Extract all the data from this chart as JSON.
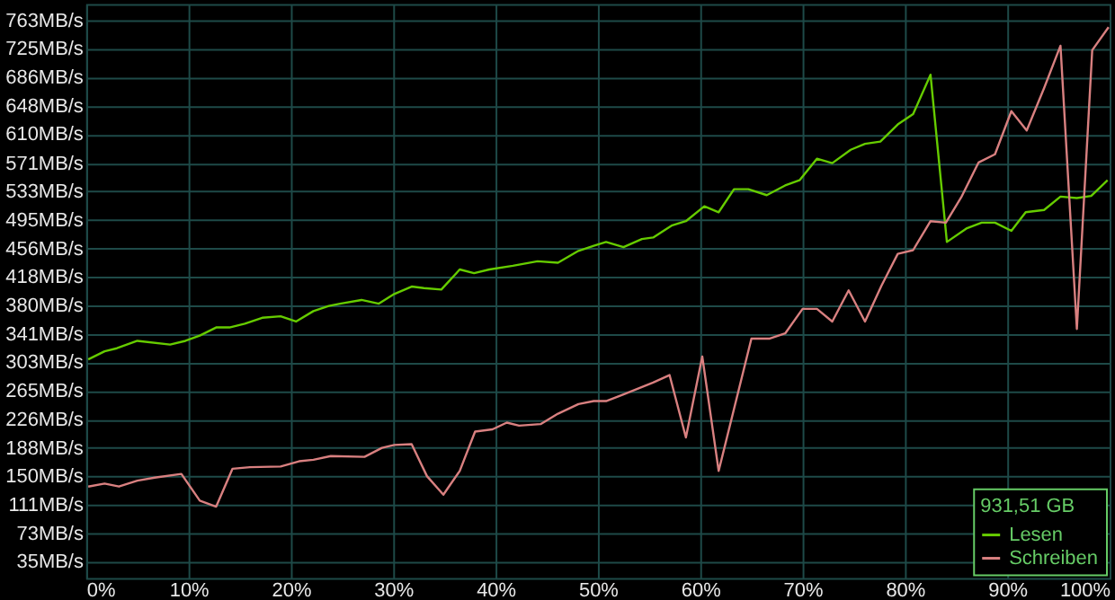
{
  "chart_data": {
    "type": "line",
    "legend_title": "931,51 GB",
    "legend": "bottom right",
    "grid": true,
    "line_style": "solid",
    "marker": "none",
    "xlim": [
      0,
      100
    ],
    "xticks": [
      {
        "value": 0,
        "label": "0%"
      },
      {
        "value": 10,
        "label": "10%"
      },
      {
        "value": 20,
        "label": "20%"
      },
      {
        "value": 30,
        "label": "30%"
      },
      {
        "value": 40,
        "label": "40%"
      },
      {
        "value": 50,
        "label": "50%"
      },
      {
        "value": 60,
        "label": "60%"
      },
      {
        "value": 70,
        "label": "70%"
      },
      {
        "value": 80,
        "label": "80%"
      },
      {
        "value": 90,
        "label": "90%"
      },
      {
        "value": 100,
        "label": "100%"
      }
    ],
    "ylim": [
      13,
      785
    ],
    "yticks": [
      {
        "value": 35,
        "label": "35MB/s"
      },
      {
        "value": 73,
        "label": "73MB/s"
      },
      {
        "value": 111,
        "label": "111MB/s"
      },
      {
        "value": 150,
        "label": "150MB/s"
      },
      {
        "value": 188,
        "label": "188MB/s"
      },
      {
        "value": 226,
        "label": "226MB/s"
      },
      {
        "value": 265,
        "label": "265MB/s"
      },
      {
        "value": 303,
        "label": "303MB/s"
      },
      {
        "value": 341,
        "label": "341MB/s"
      },
      {
        "value": 380,
        "label": "380MB/s"
      },
      {
        "value": 418,
        "label": "418MB/s"
      },
      {
        "value": 456,
        "label": "456MB/s"
      },
      {
        "value": 495,
        "label": "495MB/s"
      },
      {
        "value": 533,
        "label": "533MB/s"
      },
      {
        "value": 571,
        "label": "571MB/s"
      },
      {
        "value": 610,
        "label": "610MB/s"
      },
      {
        "value": 648,
        "label": "648MB/s"
      },
      {
        "value": 686,
        "label": "686MB/s"
      },
      {
        "value": 725,
        "label": "725MB/s"
      },
      {
        "value": 763,
        "label": "763MB/s"
      }
    ],
    "series": [
      {
        "name": "Lesen",
        "color": "#66cc00",
        "x": [
          0.2,
          1.8,
          3,
          5,
          8.2,
          9.7,
          11.1,
          12.7,
          14,
          15.5,
          17.2,
          19,
          20.5,
          22.2,
          23.7,
          24.8,
          26.9,
          28.6,
          30.1,
          31.8,
          33,
          34.7,
          36.5,
          37.9,
          39.4,
          41.7,
          44.1,
          46.1,
          48.1,
          49.6,
          50.8,
          52.5,
          54.3,
          55.4,
          57.2,
          58.6,
          60.4,
          61.8,
          63.3,
          64.7,
          66.5,
          68.3,
          69.7,
          71.4,
          72.9,
          74.7,
          76.1,
          77.6,
          79.3,
          80.8,
          82.5,
          84.1,
          86,
          87.5,
          88.8,
          90.4,
          91.8,
          93.6,
          95.2,
          96.8,
          98.2,
          99.8
        ],
        "values": [
          307,
          318,
          322,
          332,
          327,
          332,
          339,
          350,
          350,
          355,
          363,
          365,
          358,
          372,
          379,
          382,
          387,
          382,
          395,
          405,
          403,
          401,
          428,
          423,
          428,
          433,
          439,
          437,
          453,
          460,
          465,
          458,
          469,
          471,
          487,
          493,
          513,
          505,
          536,
          536,
          528,
          541,
          548,
          577,
          571,
          589,
          597,
          600,
          623,
          637,
          690,
          465,
          483,
          491,
          491,
          480,
          505,
          508,
          526,
          524,
          527,
          548
        ]
      },
      {
        "name": "Schreiben",
        "color": "#d98080",
        "x": [
          0.2,
          1.8,
          3.2,
          5,
          6.7,
          9.3,
          11.1,
          12.7,
          14.3,
          16,
          19,
          20.8,
          22.2,
          23.9,
          27.2,
          28.9,
          30.1,
          31.8,
          33.3,
          34.9,
          36.5,
          38,
          39.7,
          41.1,
          42.3,
          44.4,
          46.1,
          48.1,
          49.6,
          50.8,
          52.5,
          55.4,
          57,
          58.6,
          60.2,
          61.8,
          65,
          66.8,
          68.3,
          70,
          71.4,
          72.9,
          74.5,
          76.1,
          77.7,
          79.3,
          80.8,
          82.5,
          84,
          85.5,
          87.2,
          88.8,
          90.4,
          91.9,
          93.6,
          95.2,
          96.8,
          98.3,
          99.9
        ],
        "values": [
          136,
          140,
          136,
          144,
          148,
          153,
          117,
          109,
          160,
          162,
          163,
          170,
          172,
          177,
          176,
          188,
          192,
          193,
          150,
          125,
          157,
          210,
          213,
          222,
          218,
          220,
          234,
          247,
          251,
          251,
          260,
          276,
          286,
          202,
          311,
          157,
          335,
          335,
          342,
          375,
          375,
          358,
          400,
          358,
          406,
          449,
          454,
          493,
          491,
          525,
          572,
          583,
          641,
          615,
          672,
          729,
          348,
          723,
          754
        ]
      }
    ]
  }
}
